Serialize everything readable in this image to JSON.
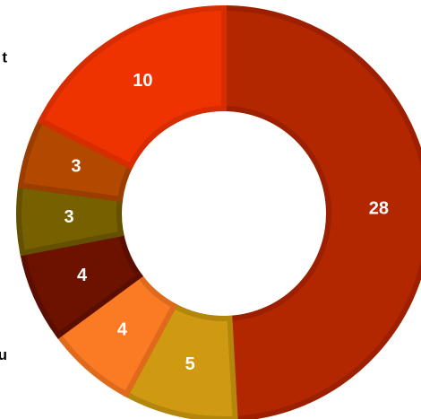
{
  "chart_data": {
    "type": "donut",
    "categories": [
      null,
      null,
      "t du",
      null,
      null,
      null,
      "t"
    ],
    "values": [
      28,
      5,
      4,
      4,
      3,
      3,
      10
    ],
    "colors": [
      "#b22600",
      "#cf9a12",
      "#fb7a24",
      "#6e1200",
      "#776000",
      "#b34800",
      "#ef3300"
    ],
    "borders": [
      "#9c2000",
      "#b5860c",
      "#e06a1c",
      "#5a0e00",
      "#635000",
      "#9a3d00",
      "#d62c00"
    ]
  }
}
